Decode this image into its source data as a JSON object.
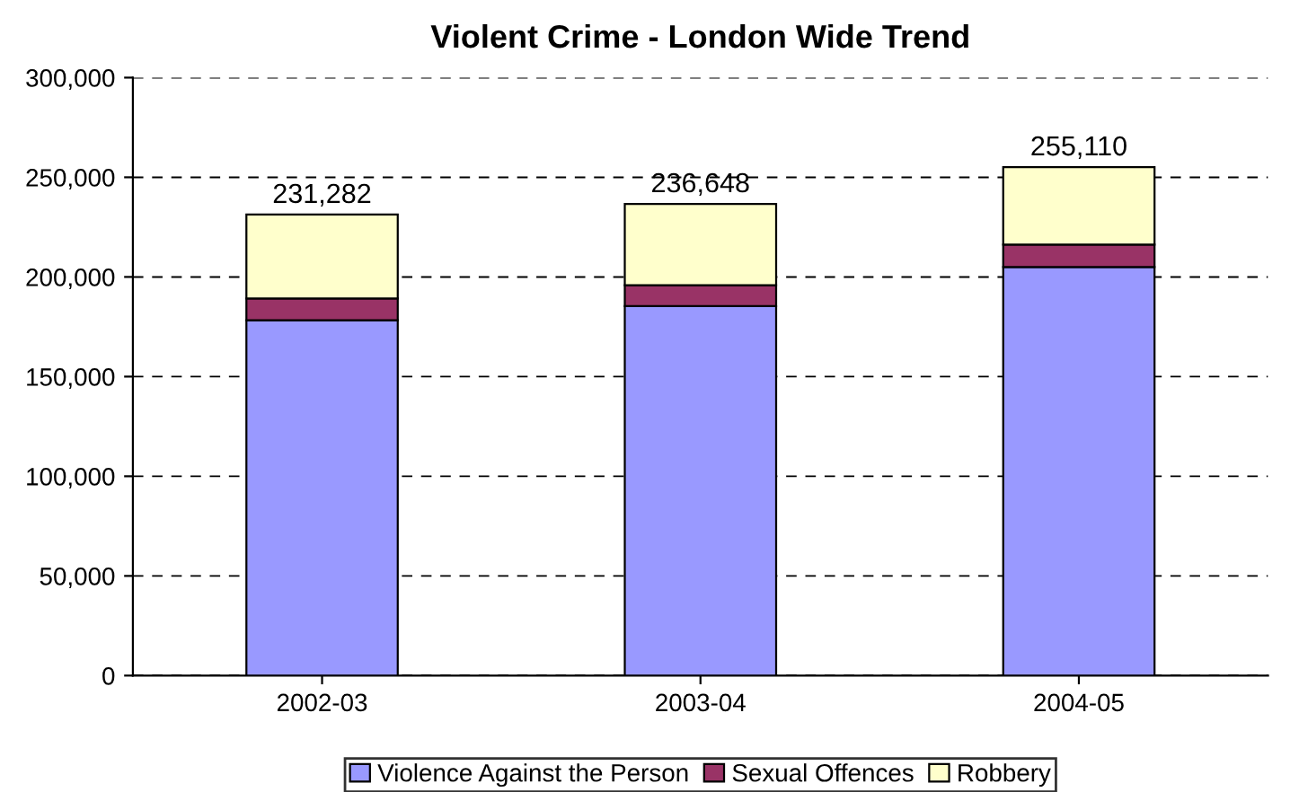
{
  "chart_data": {
    "type": "bar",
    "title": "Violent Crime - London Wide Trend",
    "categories": [
      "2002-03",
      "2003-04",
      "2004-05"
    ],
    "stacked": true,
    "series": [
      {
        "name": "Violence Against the Person",
        "color": "#9999ff",
        "values": [
          178300,
          185400,
          205000
        ]
      },
      {
        "name": "Sexual Offences",
        "color": "#993366",
        "values": [
          10900,
          10400,
          11250
        ]
      },
      {
        "name": "Robbery",
        "color": "#ffffcc",
        "values": [
          42082,
          40848,
          38860
        ]
      }
    ],
    "totals": [
      "231,282",
      "236,648",
      "255,110"
    ],
    "ylim": [
      0,
      300000
    ],
    "yticks": [
      {
        "value": 0,
        "label": "0"
      },
      {
        "value": 50000,
        "label": "50,000"
      },
      {
        "value": 100000,
        "label": "100,000"
      },
      {
        "value": 150000,
        "label": "150,000"
      },
      {
        "value": 200000,
        "label": "200,000"
      },
      {
        "value": 250000,
        "label": "250,000"
      },
      {
        "value": 300000,
        "label": "300,000"
      }
    ],
    "grid": "y",
    "legend": "bottom"
  }
}
